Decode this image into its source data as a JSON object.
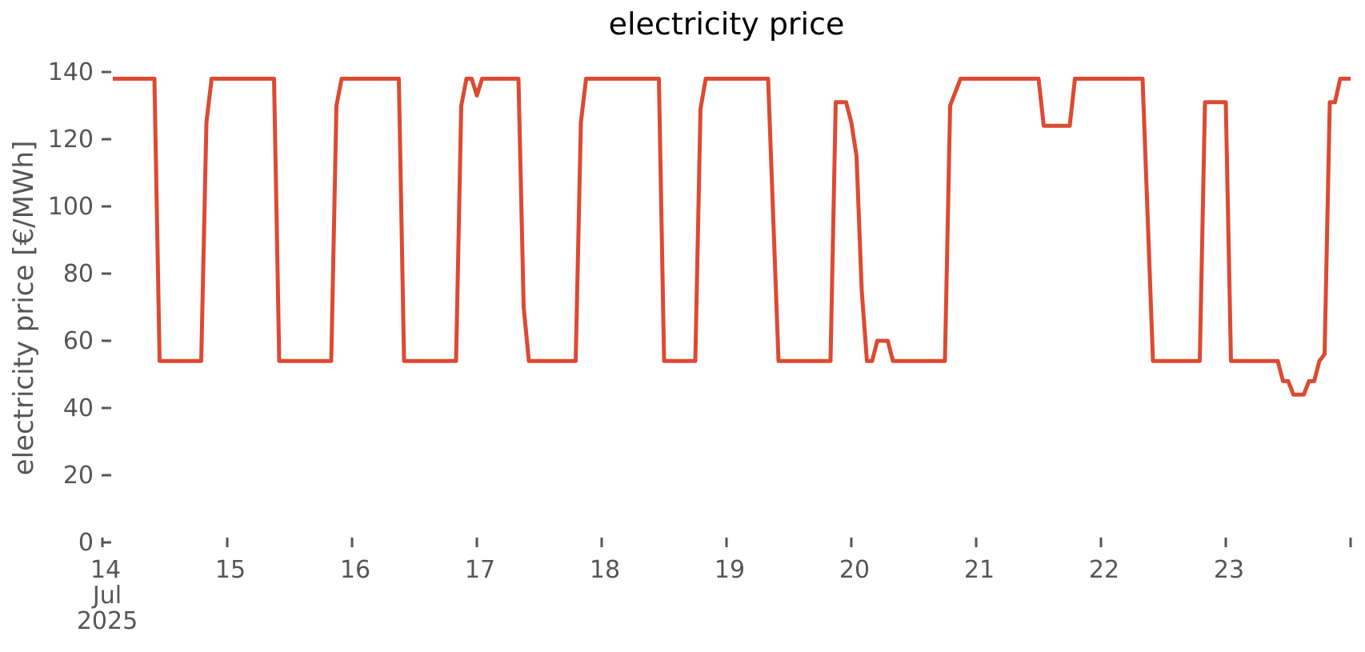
{
  "chart_data": {
    "type": "line",
    "title": "electricity price",
    "ylabel": "electricity price [€/MWh]",
    "xlabel": "",
    "unit": "€/MWh",
    "x_start": "2025-07-14 02:00",
    "x_end": "2025-07-24 00:00",
    "freq": "hourly",
    "ylim": [
      0,
      140
    ],
    "yticks": [
      0,
      20,
      40,
      60,
      80,
      100,
      120,
      140
    ],
    "xticks": [
      {
        "label": "14",
        "sub": [
          "Jul",
          "2025"
        ]
      },
      {
        "label": "15",
        "sub": []
      },
      {
        "label": "16",
        "sub": []
      },
      {
        "label": "17",
        "sub": []
      },
      {
        "label": "18",
        "sub": []
      },
      {
        "label": "19",
        "sub": []
      },
      {
        "label": "20",
        "sub": []
      },
      {
        "label": "21",
        "sub": []
      },
      {
        "label": "22",
        "sub": []
      },
      {
        "label": "23",
        "sub": []
      },
      {
        "label": "",
        "sub": []
      }
    ],
    "grid": false,
    "legend": "none",
    "colors": {
      "line": "#dc4a32",
      "axis_text": "#565656",
      "tick_mark": "#565656",
      "title_text": "#000000"
    },
    "series_by_day": {
      "jul14_from_02h": [
        138,
        138,
        138,
        138,
        138,
        138,
        138,
        138,
        138,
        54,
        54,
        54,
        54,
        54,
        54,
        54,
        54,
        54,
        125,
        138,
        138,
        138
      ],
      "jul15": [
        138,
        138,
        138,
        138,
        138,
        138,
        138,
        138,
        138,
        138,
        54,
        54,
        54,
        54,
        54,
        54,
        54,
        54,
        54,
        54,
        54,
        130,
        138,
        138
      ],
      "jul16": [
        138,
        138,
        138,
        138,
        138,
        138,
        138,
        138,
        138,
        138,
        54,
        54,
        54,
        54,
        54,
        54,
        54,
        54,
        54,
        54,
        54,
        130,
        138,
        138
      ],
      "jul17": [
        133,
        138,
        138,
        138,
        138,
        138,
        138,
        138,
        138,
        70,
        54,
        54,
        54,
        54,
        54,
        54,
        54,
        54,
        54,
        54,
        125,
        138,
        138,
        138
      ],
      "jul18": [
        138,
        138,
        138,
        138,
        138,
        138,
        138,
        138,
        138,
        138,
        138,
        138,
        54,
        54,
        54,
        54,
        54,
        54,
        54,
        129,
        138,
        138,
        138,
        138
      ],
      "jul19": [
        138,
        138,
        138,
        138,
        138,
        138,
        138,
        138,
        138,
        96,
        54,
        54,
        54,
        54,
        54,
        54,
        54,
        54,
        54,
        54,
        54,
        131,
        131,
        131
      ],
      "jul20": [
        125,
        115,
        75,
        54,
        54,
        60,
        60,
        60,
        54,
        54,
        54,
        54,
        54,
        54,
        54,
        54,
        54,
        54,
        54,
        130,
        134,
        138,
        138,
        138
      ],
      "jul21": [
        138,
        138,
        138,
        138,
        138,
        138,
        138,
        138,
        138,
        138,
        138,
        138,
        138,
        124,
        124,
        124,
        124,
        124,
        124,
        138,
        138,
        138,
        138,
        138
      ],
      "jul22": [
        138,
        138,
        138,
        138,
        138,
        138,
        138,
        138,
        138,
        96,
        54,
        54,
        54,
        54,
        54,
        54,
        54,
        54,
        54,
        54,
        131,
        131,
        131,
        131
      ],
      "jul23": [
        131,
        54,
        54,
        54,
        54,
        54,
        54,
        54,
        54,
        54,
        54,
        48,
        48,
        44,
        44,
        44,
        48,
        48,
        54,
        56,
        131,
        131,
        138,
        138
      ],
      "jul24": [
        138
      ]
    },
    "day_order": [
      "jul14_from_02h",
      "jul15",
      "jul16",
      "jul17",
      "jul18",
      "jul19",
      "jul20",
      "jul21",
      "jul22",
      "jul23",
      "jul24"
    ]
  }
}
